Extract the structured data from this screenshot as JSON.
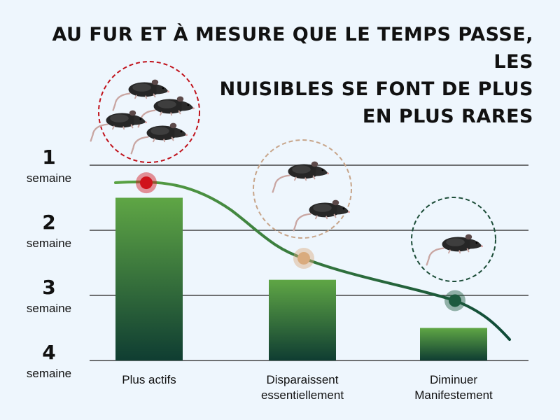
{
  "title_lines": [
    "Au fur et à mesure que le temps passe, les",
    "nuisibles se font de plus",
    "en plus rares"
  ],
  "chart_data": {
    "type": "bar",
    "title": "Au fur et à mesure que le temps passe, les nuisibles se font de plus en plus rares",
    "y_ticks": [
      {
        "value": 1,
        "number": "1",
        "unit": "semaine"
      },
      {
        "value": 2,
        "number": "2",
        "unit": "semaine"
      },
      {
        "value": 3,
        "number": "3",
        "unit": "semaine"
      },
      {
        "value": 4,
        "number": "4",
        "unit": "semaine"
      }
    ],
    "y_axis": {
      "top": 1,
      "bottom": 4,
      "inverted": true
    },
    "categories": [
      {
        "lines": [
          "Plus actifs"
        ],
        "bar_top": 1.5,
        "marker": 1.27,
        "rats": 4,
        "color": "#d0121b",
        "circle_color": "#c0121b"
      },
      {
        "lines": [
          "Disparaissent",
          "essentiellement"
        ],
        "bar_top": 2.76,
        "marker": 2.43,
        "rats": 2,
        "color": "#d9ab7e",
        "circle_color": "#c7a58a"
      },
      {
        "lines": [
          "Diminuer",
          "Manifestement"
        ],
        "bar_top": 3.5,
        "marker": 3.08,
        "rats": 1,
        "color": "#1c5a3e",
        "circle_color": "#1c4d38"
      }
    ],
    "trend_curve": true,
    "grid": true,
    "colors": {
      "bar_top": "#5fa645",
      "bar_bottom": "#0f3d32",
      "curve": "#2f7d3c",
      "grid": "#444444"
    }
  }
}
